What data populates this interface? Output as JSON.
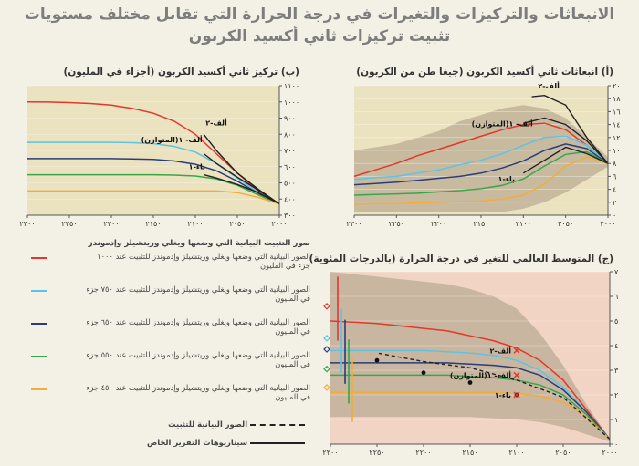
{
  "titles": {
    "line1": "الانبعاثات والتركيزات والتغيرات في درجة الحرارة التي تقابل مختلف مستويات",
    "line2": "تثبيت تركيزات ثاني أكسيد الكربون"
  },
  "colors": {
    "red": "#e5362b",
    "cyan": "#5ec3e3",
    "navy": "#2b3c78",
    "green": "#3aa64a",
    "orange": "#f3ad3a",
    "black": "#222222"
  },
  "legend": {
    "header": "صور التثبيت البيانية التي وضعها ويغلي وريتشيلز وإدموندز",
    "items": [
      {
        "color_key": "red",
        "text": "الصور البيانية التي وضعها ويغلي وريتشيلز وإدموندز للتثبيت عند ١٠٠٠ جزء في المليون"
      },
      {
        "color_key": "cyan",
        "text": "الصور البيانية التي وضعها ويغلي وريتشيلز وإدموندز للتثبيت عند ٧٥٠ جزء في المليون"
      },
      {
        "color_key": "navy",
        "text": "الصور البيانية التي وضعها ويغلي وريتشيلز وإدموندز للتثبيت عند ٦٥٠ جزء في المليون"
      },
      {
        "color_key": "green",
        "text": "الصور البيانية التي وضعها ويغلي وريتشيلز وإدموندز للتثبيت عند ٥٥٠ جزء في المليون"
      },
      {
        "color_key": "orange",
        "text": "الصور البيانية التي وضعها ويغلي وريتشيلز وإدموندز للتثبيت عند ٤٥٠ جزء في المليون"
      }
    ],
    "stab_paths_label": "الصور البيانية للتثبيت",
    "sres_label": "سيناريوهات التقرير الخاص"
  },
  "chart_data": [
    {
      "id": "a",
      "type": "line",
      "title": "(أ) انبعاثات ثاني أكسيد الكربون (جيغا طن من الكربون)",
      "x": [
        2000,
        2025,
        2050,
        2075,
        2100,
        2125,
        2150,
        2175,
        2200,
        2225,
        2250,
        2275,
        2300
      ],
      "x_ticks": [
        2000,
        2050,
        2100,
        2150,
        2200,
        2250,
        2300
      ],
      "x_tick_labels": [
        "٢٠٠٠",
        "٢٠٥٠",
        "٢١٠٠",
        "٢١٥٠",
        "٢٢٠٠",
        "٢٢٥٠",
        "٢٣٠٠"
      ],
      "y_ticks": [
        0,
        2,
        4,
        6,
        8,
        10,
        12,
        14,
        16,
        18,
        20
      ],
      "y_tick_labels": [
        "٠",
        "٢",
        "٤",
        "٦",
        "٨",
        "١٠",
        "١٢",
        "١٤",
        "١٦",
        "١٨",
        "٢٠"
      ],
      "ylim": [
        0,
        20
      ],
      "xlim": [
        2000,
        2300
      ],
      "band": {
        "x": [
          2000,
          2025,
          2050,
          2075,
          2100,
          2125,
          2150,
          2175,
          2200,
          2225,
          2250,
          2275,
          2300
        ],
        "upper": [
          9,
          12,
          15,
          16.5,
          17,
          16.5,
          15.5,
          14.5,
          13,
          12,
          11,
          10.5,
          10
        ],
        "lower": [
          7.5,
          5.5,
          3.5,
          2,
          1,
          0.5,
          0.5,
          0.5,
          0.5,
          0.5,
          0.5,
          0.5,
          0.5
        ]
      },
      "series": [
        {
          "name": "1000",
          "color_key": "red",
          "values": [
            8,
            10.8,
            13.2,
            14.2,
            14,
            13.2,
            12.2,
            11.2,
            10.2,
            9.2,
            8,
            7,
            6
          ]
        },
        {
          "name": "750",
          "color_key": "cyan",
          "values": [
            8,
            10.8,
            12.2,
            12,
            10.8,
            9.5,
            8.5,
            7.8,
            7,
            6.5,
            6,
            5.8,
            5.5
          ]
        },
        {
          "name": "650",
          "color_key": "navy",
          "values": [
            8,
            10.3,
            11,
            10,
            8.4,
            7.3,
            6.5,
            6,
            5.7,
            5.4,
            5.1,
            4.9,
            4.7
          ]
        },
        {
          "name": "550",
          "color_key": "green",
          "values": [
            8,
            9.8,
            9.4,
            7.6,
            5.6,
            4.6,
            4.1,
            3.8,
            3.6,
            3.4,
            3.3,
            3.2,
            3.1
          ]
        },
        {
          "name": "450",
          "color_key": "orange",
          "values": [
            8,
            9,
            7.6,
            4.8,
            3.1,
            2.5,
            2.2,
            2.1,
            2.0,
            1.9,
            1.8,
            1.8,
            1.7
          ]
        },
        {
          "name": "A2",
          "color_key": "black",
          "dashed": false,
          "x": [
            2000,
            2025,
            2050,
            2075,
            2090
          ],
          "values": [
            8,
            12,
            17,
            18.5,
            18.3
          ]
        },
        {
          "name": "A1B",
          "color_key": "black",
          "dashed": false,
          "x": [
            2000,
            2025,
            2050,
            2075,
            2100
          ],
          "values": [
            8,
            11.5,
            14,
            15,
            14.2
          ]
        },
        {
          "name": "B1",
          "color_key": "black",
          "dashed": false,
          "x": [
            2000,
            2025,
            2050,
            2075,
            2100
          ],
          "values": [
            8,
            9.5,
            10.5,
            8.5,
            6.5
          ]
        }
      ],
      "annotations": [
        "ألف-٢",
        "ألف- ١(المتوازن)",
        "باء-١"
      ]
    },
    {
      "id": "b",
      "type": "line",
      "title": "(ب) تركيز ثاني أكسيد الكربون (أجزاء في المليون)",
      "x": [
        2000,
        2025,
        2050,
        2075,
        2100,
        2125,
        2150,
        2175,
        2200,
        2225,
        2250,
        2275,
        2300
      ],
      "x_ticks": [
        2000,
        2050,
        2100,
        2150,
        2200,
        2250,
        2300
      ],
      "x_tick_labels": [
        "٢٠٠٠",
        "٢٠٥٠",
        "٢١٠٠",
        "٢١٥٠",
        "٢٢٠٠",
        "٢٢٥٠",
        "٢٣٠٠"
      ],
      "y_ticks": [
        300,
        400,
        500,
        600,
        700,
        800,
        900,
        1000,
        1100
      ],
      "y_tick_labels": [
        "٣٠٠",
        "٤٠٠",
        "٥٠٠",
        "٦٠٠",
        "٧٠٠",
        "٨٠٠",
        "٩٠٠",
        "١٠٠٠",
        "١١٠٠"
      ],
      "ylim": [
        300,
        1100
      ],
      "xlim": [
        2000,
        2300
      ],
      "series": [
        {
          "name": "1000",
          "color_key": "red",
          "values": [
            370,
            450,
            560,
            680,
            800,
            880,
            930,
            960,
            980,
            990,
            996,
            999,
            1000
          ]
        },
        {
          "name": "750",
          "color_key": "cyan",
          "values": [
            370,
            440,
            530,
            620,
            690,
            725,
            742,
            748,
            750,
            750,
            750,
            750,
            750
          ]
        },
        {
          "name": "650",
          "color_key": "navy",
          "values": [
            370,
            435,
            510,
            575,
            615,
            635,
            645,
            648,
            650,
            650,
            650,
            650,
            650
          ]
        },
        {
          "name": "550",
          "color_key": "green",
          "values": [
            370,
            425,
            485,
            525,
            542,
            548,
            550,
            550,
            550,
            550,
            550,
            550,
            550
          ]
        },
        {
          "name": "450",
          "color_key": "orange",
          "values": [
            370,
            410,
            440,
            450,
            450,
            450,
            450,
            450,
            450,
            450,
            450,
            450,
            450
          ]
        },
        {
          "name": "A2",
          "color_key": "black",
          "x": [
            2000,
            2025,
            2050,
            2075,
            2090
          ],
          "values": [
            370,
            460,
            560,
            700,
            800
          ]
        },
        {
          "name": "A1B",
          "color_key": "black",
          "x": [
            2000,
            2025,
            2050,
            2075,
            2090
          ],
          "values": [
            370,
            455,
            535,
            620,
            680
          ]
        },
        {
          "name": "B1",
          "color_key": "black",
          "x": [
            2000,
            2025,
            2050,
            2075,
            2090
          ],
          "values": [
            370,
            440,
            490,
            530,
            550
          ]
        }
      ],
      "annotations": [
        "ألف-٢",
        "ألف- ١(المتوازن)",
        "باء-١"
      ]
    },
    {
      "id": "c",
      "type": "line",
      "title": "(ج) المتوسط العالمي للتغير في درجة الحرارة (بالدرجات المئوية)",
      "x": [
        2000,
        2025,
        2050,
        2075,
        2100,
        2125,
        2150,
        2175,
        2200,
        2225,
        2250,
        2275,
        2300
      ],
      "x_ticks": [
        2000,
        2050,
        2100,
        2150,
        2200,
        2250,
        2300
      ],
      "x_tick_labels": [
        "٢٠٠٠",
        "٢٠٥٠",
        "٢١٠٠",
        "٢١٥٠",
        "٢٢٠٠",
        "٢٢٥٠",
        "٢٣٠٠"
      ],
      "y_ticks": [
        0,
        1,
        2,
        3,
        4,
        5,
        6,
        7
      ],
      "y_tick_labels": [
        "٠",
        "١",
        "٢",
        "٣",
        "٤",
        "٥",
        "٦",
        "٧"
      ],
      "ylim": [
        0,
        7
      ],
      "xlim": [
        2000,
        2300
      ],
      "band": {
        "x": [
          2000,
          2025,
          2050,
          2075,
          2100,
          2125,
          2150,
          2175,
          2200,
          2225,
          2250,
          2275,
          2300
        ],
        "upper": [
          0.2,
          1.6,
          3.2,
          4.5,
          5.5,
          6.0,
          6.3,
          6.5,
          6.6,
          6.7,
          6.8,
          6.9,
          7.0
        ],
        "lower": [
          0.1,
          0.4,
          0.7,
          0.9,
          1.0,
          1.05,
          1.1,
          1.1,
          1.1,
          1.1,
          1.1,
          1.1,
          1.1
        ]
      },
      "series": [
        {
          "name": "1000",
          "color_key": "red",
          "values": [
            0.2,
            1.4,
            2.6,
            3.4,
            3.9,
            4.2,
            4.4,
            4.6,
            4.7,
            4.8,
            4.9,
            4.95,
            5.0
          ]
        },
        {
          "name": "750",
          "color_key": "cyan",
          "values": [
            0.2,
            1.3,
            2.3,
            3.0,
            3.4,
            3.6,
            3.7,
            3.75,
            3.8,
            3.8,
            3.8,
            3.8,
            3.8
          ]
        },
        {
          "name": "650",
          "color_key": "navy",
          "values": [
            0.2,
            1.3,
            2.2,
            2.8,
            3.1,
            3.2,
            3.25,
            3.3,
            3.3,
            3.3,
            3.3,
            3.3,
            3.3
          ]
        },
        {
          "name": "550",
          "color_key": "green",
          "values": [
            0.2,
            1.2,
            2.0,
            2.4,
            2.6,
            2.7,
            2.75,
            2.8,
            2.8,
            2.8,
            2.8,
            2.8,
            2.8
          ]
        },
        {
          "name": "450",
          "color_key": "orange",
          "values": [
            0.2,
            1.1,
            1.7,
            1.95,
            2.05,
            2.1,
            2.1,
            2.1,
            2.1,
            2.1,
            2.1,
            2.1,
            2.1
          ]
        },
        {
          "name": "stab-paths",
          "color_key": "black",
          "dashed": true,
          "x": [
            2000,
            2050,
            2100,
            2150,
            2200,
            2250
          ],
          "values": [
            0.2,
            1.9,
            2.6,
            3.1,
            3.35,
            3.7
          ]
        }
      ],
      "sres_markers": [
        {
          "label": "ألف-٢",
          "x": 2100,
          "y": 3.8,
          "color_key": "red"
        },
        {
          "label": "ألف- ١(المتوازن)",
          "x": 2100,
          "y": 2.8,
          "color_key": "red"
        },
        {
          "label": "باء-١",
          "x": 2100,
          "y": 2.0,
          "color_key": "red"
        }
      ],
      "dots": [
        {
          "x": 2100,
          "y": 2.0
        },
        {
          "x": 2150,
          "y": 2.5
        },
        {
          "x": 2200,
          "y": 2.9
        },
        {
          "x": 2250,
          "y": 3.4
        }
      ],
      "side_markers": [
        {
          "color_key": "red",
          "y": 5.6
        },
        {
          "color_key": "cyan",
          "y": 4.3
        },
        {
          "color_key": "navy",
          "y": 3.85
        },
        {
          "color_key": "green",
          "y": 3.05
        },
        {
          "color_key": "orange",
          "y": 2.3
        }
      ]
    }
  ]
}
